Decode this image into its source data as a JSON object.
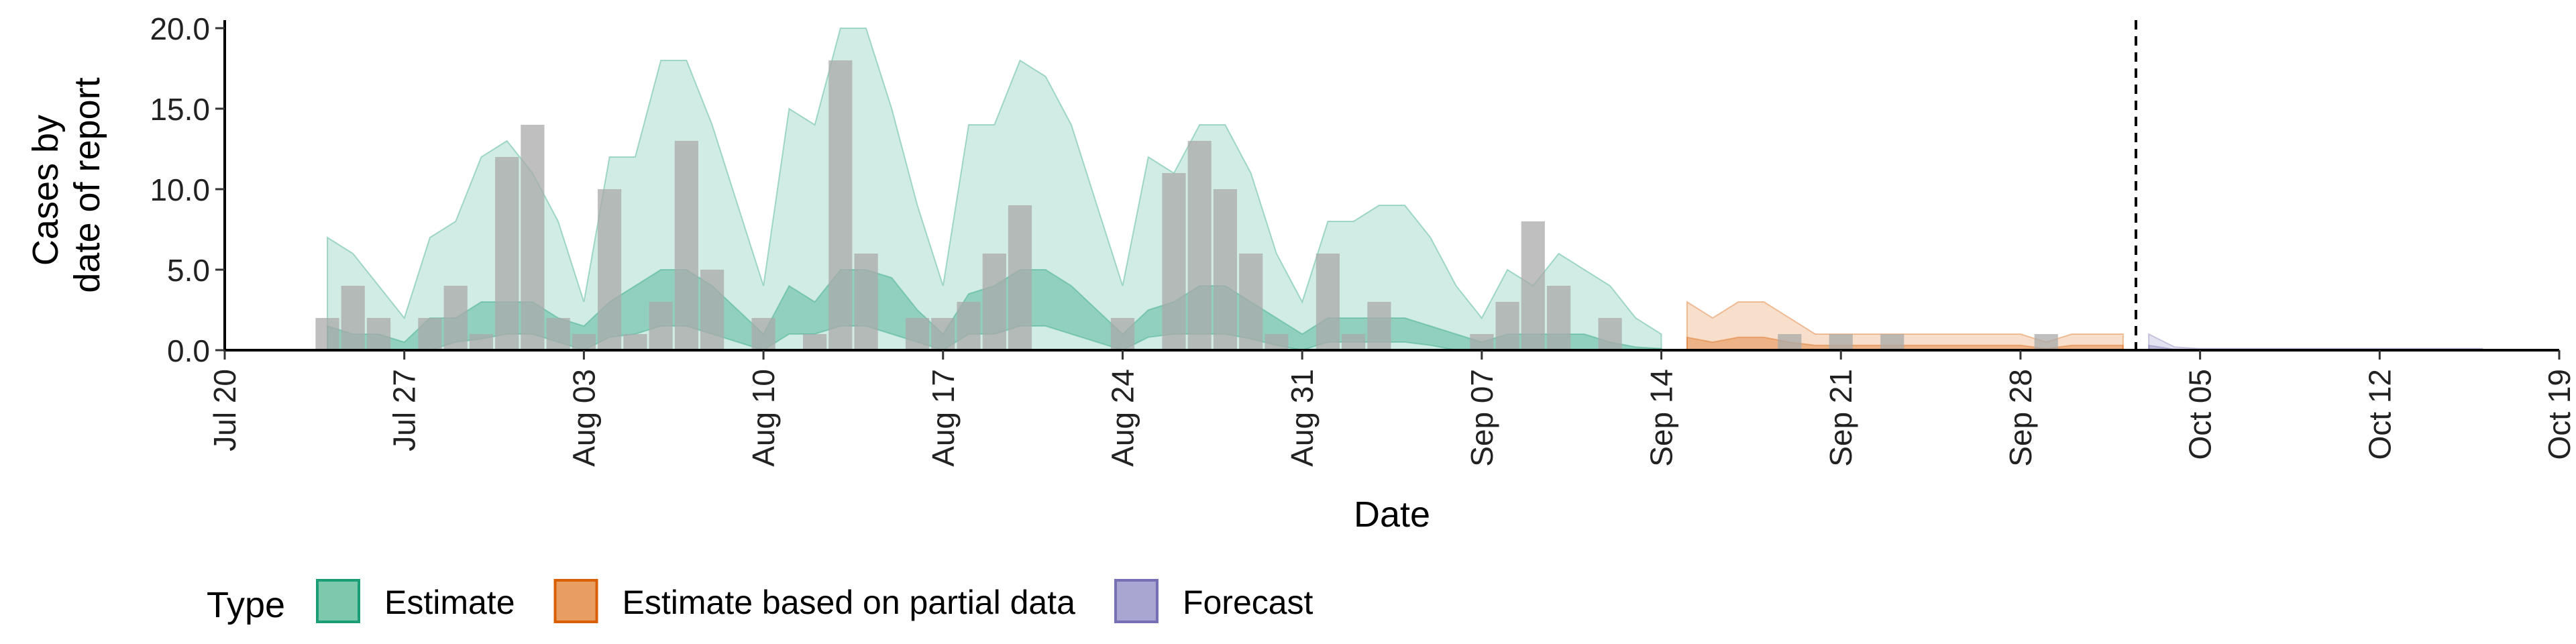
{
  "chart_data": {
    "type": "area",
    "xlabel": "Date",
    "ylabel_lines": [
      "Cases by",
      "date of report"
    ],
    "ylim": [
      0,
      20.5
    ],
    "y_ticks": [
      "0.0",
      "5.0",
      "10.0",
      "15.0",
      "20.0"
    ],
    "y_tick_values": [
      0,
      5,
      10,
      15,
      20
    ],
    "x_ticks": [
      {
        "label": "Jul 20",
        "date": "2020-07-20"
      },
      {
        "label": "Jul 27",
        "date": "2020-07-27"
      },
      {
        "label": "Aug 03",
        "date": "2020-08-03"
      },
      {
        "label": "Aug 10",
        "date": "2020-08-10"
      },
      {
        "label": "Aug 17",
        "date": "2020-08-17"
      },
      {
        "label": "Aug 24",
        "date": "2020-08-24"
      },
      {
        "label": "Aug 31",
        "date": "2020-08-31"
      },
      {
        "label": "Sep 07",
        "date": "2020-09-07"
      },
      {
        "label": "Sep 14",
        "date": "2020-09-14"
      },
      {
        "label": "Sep 21",
        "date": "2020-09-21"
      },
      {
        "label": "Sep 28",
        "date": "2020-09-28"
      },
      {
        "label": "Oct 05",
        "date": "2020-10-05"
      },
      {
        "label": "Oct 12",
        "date": "2020-10-12"
      },
      {
        "label": "Oct 19",
        "date": "2020-10-19"
      }
    ],
    "x_range": [
      "2020-07-20",
      "2020-10-19"
    ],
    "forecast_start_date": "2020-10-02",
    "legend": {
      "title": "Type",
      "position": "bottom",
      "items": [
        {
          "label": "Estimate",
          "fill": "#7ec8ad",
          "stroke": "#1b9e77"
        },
        {
          "label": "Estimate based on partial data",
          "fill": "#e89e63",
          "stroke": "#d95f02"
        },
        {
          "label": "Forecast",
          "fill": "#a9a6d2",
          "stroke": "#7570b3"
        }
      ]
    },
    "reported_cases": {
      "color": "#a9a9a9",
      "dates": [
        "2020-07-24",
        "2020-07-25",
        "2020-07-26",
        "2020-07-28",
        "2020-07-29",
        "2020-07-30",
        "2020-07-31",
        "2020-08-01",
        "2020-08-02",
        "2020-08-03",
        "2020-08-04",
        "2020-08-05",
        "2020-08-06",
        "2020-08-07",
        "2020-08-08",
        "2020-08-10",
        "2020-08-12",
        "2020-08-13",
        "2020-08-14",
        "2020-08-16",
        "2020-08-17",
        "2020-08-18",
        "2020-08-19",
        "2020-08-20",
        "2020-08-24",
        "2020-08-26",
        "2020-08-27",
        "2020-08-28",
        "2020-08-29",
        "2020-08-30",
        "2020-09-01",
        "2020-09-02",
        "2020-09-03",
        "2020-09-07",
        "2020-09-08",
        "2020-09-09",
        "2020-09-10",
        "2020-09-12",
        "2020-09-19",
        "2020-09-21",
        "2020-09-23",
        "2020-09-29"
      ],
      "values": [
        2,
        4,
        2,
        2,
        4,
        1,
        12,
        14,
        2,
        1,
        10,
        1,
        3,
        13,
        5,
        2,
        1,
        18,
        6,
        2,
        2,
        3,
        6,
        9,
        2,
        11,
        13,
        10,
        6,
        1,
        6,
        1,
        3,
        1,
        3,
        8,
        4,
        2,
        1,
        1,
        1,
        1
      ]
    },
    "series": [
      {
        "name": "Estimate",
        "color": "#1b9e77",
        "dates": [
          "2020-07-24",
          "2020-07-25",
          "2020-07-26",
          "2020-07-27",
          "2020-07-28",
          "2020-07-29",
          "2020-07-30",
          "2020-07-31",
          "2020-08-01",
          "2020-08-02",
          "2020-08-03",
          "2020-08-04",
          "2020-08-05",
          "2020-08-06",
          "2020-08-07",
          "2020-08-08",
          "2020-08-09",
          "2020-08-10",
          "2020-08-11",
          "2020-08-12",
          "2020-08-13",
          "2020-08-14",
          "2020-08-15",
          "2020-08-16",
          "2020-08-17",
          "2020-08-18",
          "2020-08-19",
          "2020-08-20",
          "2020-08-21",
          "2020-08-22",
          "2020-08-23",
          "2020-08-24",
          "2020-08-25",
          "2020-08-26",
          "2020-08-27",
          "2020-08-28",
          "2020-08-29",
          "2020-08-30",
          "2020-08-31",
          "2020-09-01",
          "2020-09-02",
          "2020-09-03",
          "2020-09-04",
          "2020-09-05",
          "2020-09-06",
          "2020-09-07",
          "2020-09-08",
          "2020-09-09",
          "2020-09-10",
          "2020-09-11",
          "2020-09-12",
          "2020-09-13",
          "2020-09-14"
        ],
        "upper90": [
          7,
          6,
          4,
          2,
          7,
          8,
          12,
          13,
          11,
          8,
          3,
          12,
          12,
          18,
          18,
          14,
          9,
          4,
          15,
          14,
          20,
          20,
          15,
          9,
          4,
          14,
          14,
          18,
          17,
          14,
          9,
          4,
          12,
          11,
          14,
          14,
          11,
          6,
          3,
          8,
          8,
          9,
          9,
          7,
          4,
          2,
          5,
          4,
          6,
          5,
          4,
          2,
          1
        ],
        "lower90": [
          0,
          0,
          0,
          0,
          0,
          0,
          0,
          0,
          0,
          0,
          0,
          0,
          0,
          0,
          0,
          0,
          0,
          0,
          0,
          0,
          0,
          0,
          0,
          0,
          0,
          0,
          0,
          0,
          0,
          0,
          0,
          0,
          0,
          0,
          0,
          0,
          0,
          0,
          0,
          0,
          0,
          0,
          0,
          0,
          0,
          0,
          0,
          0,
          0,
          0,
          0,
          0,
          0
        ],
        "upper50": [
          1.5,
          1,
          1,
          0.5,
          2,
          2,
          3,
          3,
          3,
          2,
          1.5,
          3,
          4,
          5,
          5,
          4,
          2.5,
          1,
          4,
          3,
          5,
          5,
          4.5,
          2.5,
          1,
          3.5,
          4,
          5,
          5,
          4,
          2.5,
          1,
          2.5,
          3,
          4,
          4,
          3,
          2,
          1,
          2,
          2,
          2,
          2,
          1.5,
          1,
          0.5,
          1,
          1,
          1,
          1,
          0.5,
          0.2,
          0.1
        ],
        "lower50": [
          0,
          0,
          0,
          0,
          0,
          0.5,
          0.7,
          1,
          1,
          0.5,
          0,
          0.8,
          1,
          1.5,
          1.5,
          1,
          0.5,
          0,
          1,
          1,
          1.5,
          1.5,
          1,
          0.5,
          0,
          1,
          1,
          1.5,
          1.5,
          1,
          0.5,
          0,
          0.8,
          1,
          1,
          1,
          0.7,
          0.3,
          0,
          0.5,
          0.5,
          0.5,
          0.5,
          0.3,
          0,
          0,
          0,
          0,
          0,
          0,
          0,
          0,
          0
        ]
      },
      {
        "name": "Estimate based on partial data",
        "color": "#d95f02",
        "dates": [
          "2020-09-15",
          "2020-09-16",
          "2020-09-17",
          "2020-09-18",
          "2020-09-19",
          "2020-09-20",
          "2020-09-21",
          "2020-09-22",
          "2020-09-23",
          "2020-09-24",
          "2020-09-25",
          "2020-09-26",
          "2020-09-27",
          "2020-09-28",
          "2020-09-29",
          "2020-09-30",
          "2020-10-01",
          "2020-10-02"
        ],
        "upper90": [
          3,
          2,
          3,
          3,
          2,
          1,
          1,
          1,
          1,
          1,
          1,
          1,
          1,
          1,
          0.5,
          1,
          1,
          1
        ],
        "lower90": [
          0,
          0,
          0,
          0,
          0,
          0,
          0,
          0,
          0,
          0,
          0,
          0,
          0,
          0,
          0,
          0,
          0,
          0
        ],
        "upper50": [
          0.8,
          0.5,
          0.8,
          0.8,
          0.5,
          0.3,
          0.3,
          0.3,
          0.3,
          0.3,
          0.3,
          0.3,
          0.3,
          0.3,
          0.1,
          0.3,
          0.3,
          0.3
        ],
        "lower50": [
          0,
          0,
          0,
          0,
          0,
          0,
          0,
          0,
          0,
          0,
          0,
          0,
          0,
          0,
          0,
          0,
          0,
          0
        ]
      },
      {
        "name": "Forecast",
        "color": "#7570b3",
        "dates": [
          "2020-10-03",
          "2020-10-04",
          "2020-10-05",
          "2020-10-06",
          "2020-10-07",
          "2020-10-08",
          "2020-10-09",
          "2020-10-10",
          "2020-10-11",
          "2020-10-12",
          "2020-10-13",
          "2020-10-14",
          "2020-10-15",
          "2020-10-16"
        ],
        "upper90": [
          1,
          0.2,
          0.1,
          0.1,
          0.1,
          0.1,
          0.1,
          0.1,
          0.1,
          0.1,
          0.1,
          0.1,
          0.1,
          0.1
        ],
        "lower90": [
          0,
          0,
          0,
          0,
          0,
          0,
          0,
          0,
          0,
          0,
          0,
          0,
          0,
          0
        ],
        "upper50": [
          0.3,
          0.05,
          0.05,
          0.05,
          0.05,
          0.05,
          0.05,
          0.05,
          0.05,
          0.05,
          0.05,
          0.05,
          0.05,
          0.05
        ],
        "lower50": [
          0,
          0,
          0,
          0,
          0,
          0,
          0,
          0,
          0,
          0,
          0,
          0,
          0,
          0
        ]
      }
    ]
  }
}
